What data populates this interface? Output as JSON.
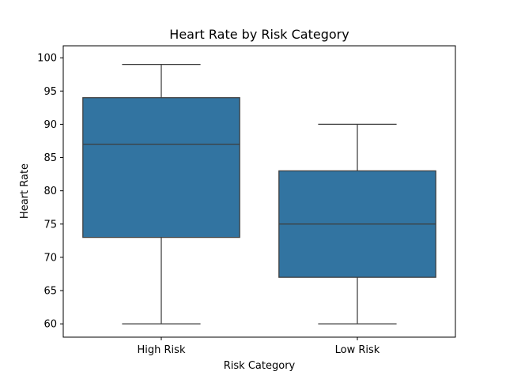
{
  "chart_data": {
    "type": "box",
    "title": "Heart Rate by Risk Category",
    "xlabel": "Risk Category",
    "ylabel": "Heart Rate",
    "ylim": [
      58,
      101.8
    ],
    "yticks": [
      60,
      65,
      70,
      75,
      80,
      85,
      90,
      95,
      100
    ],
    "grid": false,
    "box_color": "#3274a1",
    "line_color": "#3d3d3d",
    "categories": [
      "High Risk",
      "Low Risk"
    ],
    "boxes": [
      {
        "category": "High Risk",
        "min": 60,
        "q1": 73,
        "median": 87,
        "q3": 94,
        "max": 99
      },
      {
        "category": "Low Risk",
        "min": 60,
        "q1": 67,
        "median": 75,
        "q3": 83,
        "max": 90
      }
    ]
  }
}
